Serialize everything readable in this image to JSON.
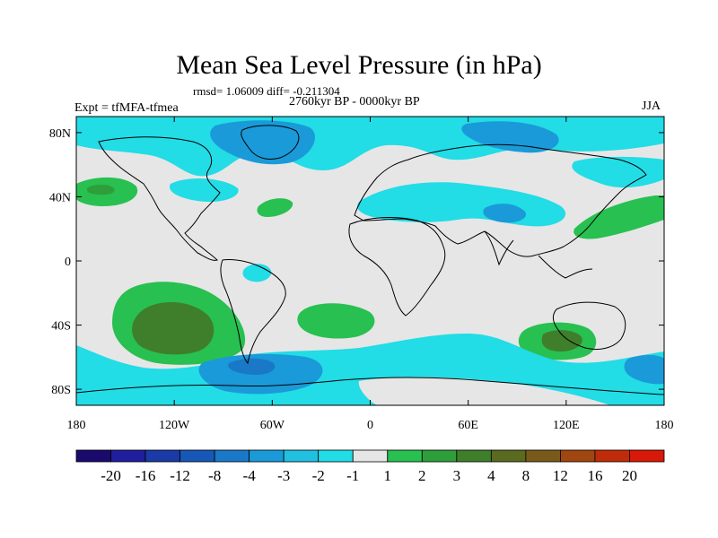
{
  "title": "Mean Sea Level Pressure (in hPa)",
  "stats_line": "rmsd= 1.06009 diff= -0.211304",
  "period": "2760kyr BP - 0000kyr BP",
  "experiment": "Expt = tfMFA-tfmea",
  "season": "JJA",
  "lat_ticks": [
    {
      "label": "80N",
      "value": 80
    },
    {
      "label": "40N",
      "value": 40
    },
    {
      "label": "0",
      "value": 0
    },
    {
      "label": "40S",
      "value": -40
    },
    {
      "label": "80S",
      "value": -80
    }
  ],
  "lon_ticks": [
    {
      "label": "180",
      "value": -180
    },
    {
      "label": "120W",
      "value": -120
    },
    {
      "label": "60W",
      "value": -60
    },
    {
      "label": "0",
      "value": 0
    },
    {
      "label": "60E",
      "value": 60
    },
    {
      "label": "120E",
      "value": 120
    },
    {
      "label": "180",
      "value": 180
    }
  ],
  "colorbar": {
    "colors": [
      "#1a0a6e",
      "#1e1e9e",
      "#1a3aa8",
      "#1658b8",
      "#1a78c8",
      "#1a9ad8",
      "#22c0e0",
      "#22dce6",
      "#e6e6e6",
      "#28c050",
      "#2e9e3a",
      "#3f7e2a",
      "#5a6a1e",
      "#7a5a1a",
      "#a0460f",
      "#c02c0a",
      "#d81808"
    ],
    "labels": [
      "-20",
      "-16",
      "-12",
      "-8",
      "-4",
      "-3",
      "-2",
      "-1",
      "1",
      "2",
      "3",
      "4",
      "8",
      "12",
      "16",
      "20"
    ]
  },
  "map_colors": {
    "ocean_neutral": "#e6e6e6",
    "light_cyan": "#22dce6",
    "cyan": "#22c0e0",
    "light_blue": "#1a9ad8",
    "blue": "#1a78c8",
    "green": "#28c050",
    "dark_green": "#2e9e3a",
    "olive": "#3f7e2a",
    "coast": "#000000"
  }
}
